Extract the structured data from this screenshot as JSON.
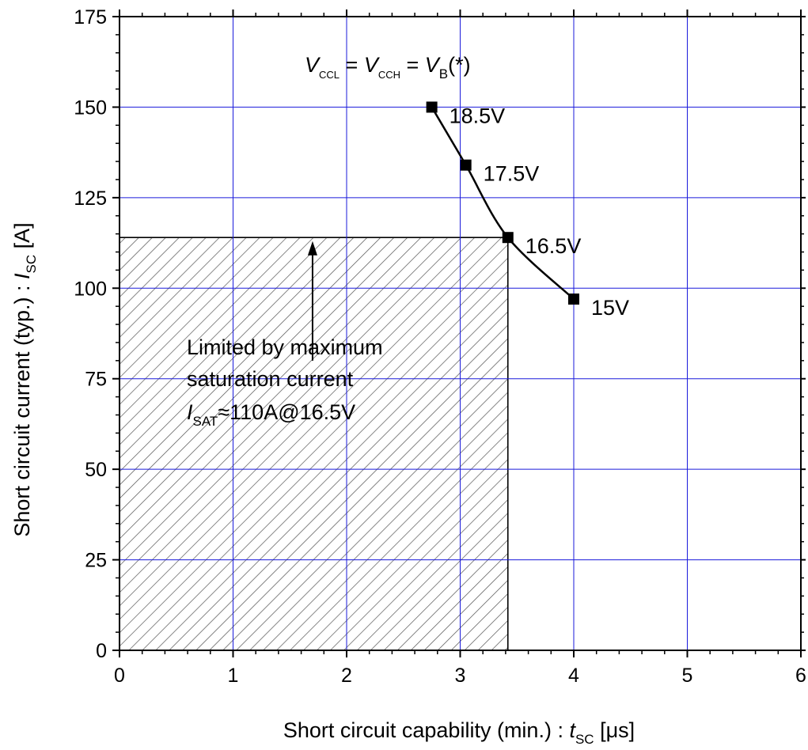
{
  "chart_data": {
    "type": "scatter",
    "title": "",
    "xlabel": {
      "main": "Short circuit capability (min.) : ",
      "var": "t",
      "sub": "SC",
      "unit": " [μs]"
    },
    "ylabel": {
      "main": "Short circuit  current (typ.) : ",
      "var": "I",
      "sub": "SC",
      "unit": " [A]"
    },
    "xlim": [
      0,
      6
    ],
    "ylim": [
      0,
      175
    ],
    "x_ticks": [
      "0",
      "1",
      "2",
      "3",
      "4",
      "5",
      "6"
    ],
    "y_ticks": [
      "0",
      "25",
      "50",
      "75",
      "100",
      "125",
      "150",
      "175"
    ],
    "grid": true,
    "grid_color": "#1a1adb",
    "series": [
      {
        "x": [
          2.75,
          3.05,
          3.42,
          4.0
        ],
        "y": [
          150,
          134,
          114,
          97
        ],
        "point_labels": [
          "18.5V",
          "17.5V",
          "16.5V",
          "15V"
        ],
        "color": "#000000"
      }
    ],
    "condition": {
      "v1": "V",
      "s1": "CCL",
      "eq1": " = ",
      "v2": "V",
      "s2": "CCH",
      "eq2": " = ",
      "v3": "V",
      "s3": "B",
      "tail": "(*)"
    },
    "hatched_region": {
      "x": [
        0,
        3.42
      ],
      "y": [
        0,
        114
      ]
    },
    "annotation": {
      "line1": "Limited by maximum",
      "line2": "saturation current",
      "var": "I",
      "sub": "SAT",
      "value": "≈110A@16.5V",
      "arrow_x": 1.7,
      "arrow_y_from": 80,
      "arrow_y_to": 113
    }
  }
}
